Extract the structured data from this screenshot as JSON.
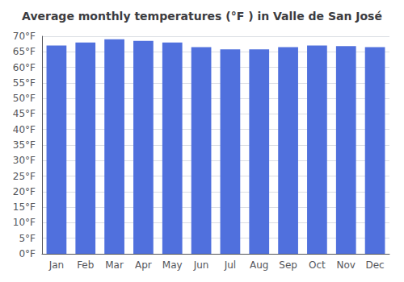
{
  "chart_data": {
    "type": "bar",
    "title": "Average monthly temperatures (°F ) in Valle de San José",
    "categories": [
      "Jan",
      "Feb",
      "Mar",
      "Apr",
      "May",
      "Jun",
      "Jul",
      "Aug",
      "Sep",
      "Oct",
      "Nov",
      "Dec"
    ],
    "values": [
      67.0,
      68.0,
      69.0,
      68.5,
      68.0,
      66.5,
      65.8,
      65.8,
      66.5,
      67.0,
      66.8,
      66.5
    ],
    "ylim": [
      0,
      70
    ],
    "yticks": [
      {
        "value": 0,
        "label": "0°F"
      },
      {
        "value": 5,
        "label": "5°F"
      },
      {
        "value": 10,
        "label": "10°F"
      },
      {
        "value": 15,
        "label": "15°F"
      },
      {
        "value": 20,
        "label": "20°F"
      },
      {
        "value": 25,
        "label": "25°F"
      },
      {
        "value": 30,
        "label": "30°F"
      },
      {
        "value": 35,
        "label": "35°F"
      },
      {
        "value": 40,
        "label": "40°F"
      },
      {
        "value": 45,
        "label": "45°F"
      },
      {
        "value": 50,
        "label": "50°F"
      },
      {
        "value": 55,
        "label": "55°F"
      },
      {
        "value": 60,
        "label": "60°F"
      },
      {
        "value": 65,
        "label": "65°F"
      },
      {
        "value": 70,
        "label": "70°F"
      }
    ],
    "grid": true
  }
}
